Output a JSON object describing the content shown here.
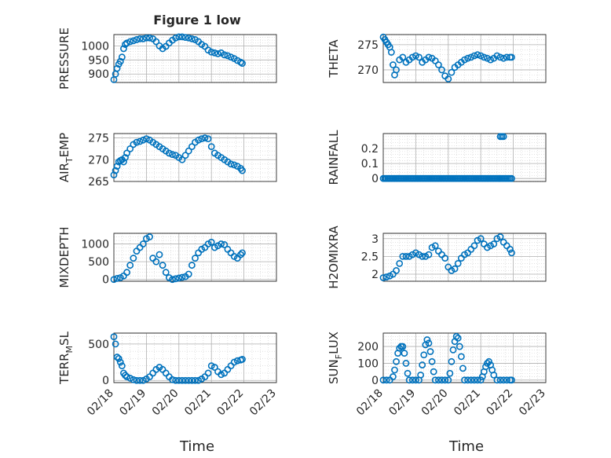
{
  "figure": {
    "title": "Figure 1 low",
    "xlabel": "Time"
  },
  "chart_data": [
    {
      "type": "scatter",
      "name": "PRESSURE",
      "ylabel": "PRESSURE",
      "ylim": [
        870,
        1040
      ],
      "yticks": [
        900,
        950,
        1000
      ],
      "xlim": [
        0,
        5
      ],
      "xticks": [
        0,
        1,
        2,
        3,
        4,
        5
      ],
      "xticklabels": [
        "02/18",
        "02/19",
        "02/20",
        "02/21",
        "02/22",
        "02/23"
      ],
      "show_xticklabels": false,
      "x": [
        0.0,
        0.05,
        0.1,
        0.15,
        0.2,
        0.25,
        0.3,
        0.35,
        0.4,
        0.5,
        0.6,
        0.7,
        0.8,
        0.9,
        1.0,
        1.1,
        1.2,
        1.3,
        1.4,
        1.5,
        1.6,
        1.7,
        1.8,
        1.9,
        2.0,
        2.1,
        2.2,
        2.3,
        2.4,
        2.5,
        2.6,
        2.7,
        2.8,
        2.9,
        3.0,
        3.1,
        3.2,
        3.3,
        3.4,
        3.5,
        3.6,
        3.7,
        3.8,
        3.9,
        3.95
      ],
      "y": [
        880,
        900,
        920,
        935,
        945,
        960,
        990,
        1005,
        1010,
        1015,
        1018,
        1022,
        1025,
        1025,
        1028,
        1028,
        1025,
        1015,
        1000,
        990,
        998,
        1010,
        1020,
        1028,
        1032,
        1032,
        1030,
        1028,
        1025,
        1022,
        1015,
        1005,
        998,
        985,
        978,
        975,
        972,
        975,
        968,
        965,
        960,
        955,
        948,
        942,
        938
      ]
    },
    {
      "type": "scatter",
      "name": "THETA",
      "ylabel": "THETA",
      "ylim": [
        267.5,
        277
      ],
      "yticks": [
        270,
        275
      ],
      "xlim": [
        0,
        5
      ],
      "xticks": [
        0,
        1,
        2,
        3,
        4,
        5
      ],
      "xticklabels": [
        "02/18",
        "02/19",
        "02/20",
        "02/21",
        "02/22",
        "02/23"
      ],
      "show_xticklabels": false,
      "x": [
        0.0,
        0.05,
        0.1,
        0.15,
        0.2,
        0.25,
        0.3,
        0.35,
        0.4,
        0.5,
        0.6,
        0.7,
        0.8,
        0.9,
        1.0,
        1.1,
        1.2,
        1.3,
        1.4,
        1.5,
        1.6,
        1.7,
        1.8,
        1.9,
        2.0,
        2.1,
        2.2,
        2.3,
        2.4,
        2.5,
        2.6,
        2.7,
        2.8,
        2.9,
        3.0,
        3.1,
        3.2,
        3.3,
        3.4,
        3.5,
        3.6,
        3.7,
        3.8,
        3.9,
        3.95
      ],
      "y": [
        276.5,
        276,
        275.5,
        275,
        274.5,
        273.5,
        271,
        269,
        270,
        272,
        272.5,
        271.5,
        272,
        272.5,
        272.8,
        272.5,
        271.5,
        272,
        272.5,
        272.3,
        271.8,
        271,
        270,
        268.8,
        268.2,
        269.5,
        270.5,
        271,
        271.5,
        272,
        272.3,
        272.5,
        272.8,
        273,
        272.8,
        272.5,
        272.3,
        272,
        272.3,
        272.8,
        272.5,
        272.3,
        272.5,
        272.5,
        272.5
      ]
    },
    {
      "type": "scatter",
      "name": "AIR_TEMP",
      "ylabel": "AIR_TEMP",
      "ylim": [
        265,
        276
      ],
      "yticks": [
        265,
        270,
        275
      ],
      "xlim": [
        0,
        5
      ],
      "xticks": [
        0,
        1,
        2,
        3,
        4,
        5
      ],
      "xticklabels": [
        "02/18",
        "02/19",
        "02/20",
        "02/21",
        "02/22",
        "02/23"
      ],
      "show_xticklabels": false,
      "x": [
        0.0,
        0.05,
        0.1,
        0.15,
        0.2,
        0.25,
        0.3,
        0.35,
        0.4,
        0.5,
        0.6,
        0.7,
        0.8,
        0.9,
        1.0,
        1.1,
        1.2,
        1.3,
        1.4,
        1.5,
        1.6,
        1.7,
        1.8,
        1.9,
        2.0,
        2.1,
        2.2,
        2.3,
        2.4,
        2.5,
        2.6,
        2.7,
        2.8,
        2.9,
        3.0,
        3.1,
        3.2,
        3.3,
        3.4,
        3.5,
        3.6,
        3.7,
        3.8,
        3.9,
        3.95
      ],
      "y": [
        266.5,
        267.5,
        268.5,
        269.5,
        269.8,
        270,
        269.5,
        270.5,
        271.5,
        272.5,
        273.5,
        274,
        274.2,
        274.5,
        274.8,
        274.5,
        274,
        273.5,
        273,
        272.5,
        272,
        271.5,
        271.2,
        271,
        270.5,
        270,
        271,
        272,
        273,
        274,
        274.5,
        274.8,
        275,
        274.8,
        273,
        271.5,
        271,
        270.5,
        270,
        269.5,
        269,
        268.8,
        268.5,
        268,
        267.5
      ]
    },
    {
      "type": "scatter",
      "name": "RAINFALL",
      "ylabel": "RAINFALL",
      "ylim": [
        -0.02,
        0.3
      ],
      "yticks": [
        0,
        0.1,
        0.2
      ],
      "xlim": [
        0,
        5
      ],
      "xticks": [
        0,
        1,
        2,
        3,
        4,
        5
      ],
      "xticklabels": [
        "02/18",
        "02/19",
        "02/20",
        "02/21",
        "02/22",
        "02/23"
      ],
      "show_xticklabels": false,
      "x": [
        0.0,
        0.05,
        0.1,
        0.15,
        0.2,
        0.25,
        0.3,
        0.35,
        0.4,
        0.45,
        0.5,
        0.55,
        0.6,
        0.65,
        0.7,
        0.75,
        0.8,
        0.85,
        0.9,
        0.95,
        1.0,
        1.05,
        1.1,
        1.15,
        1.2,
        1.25,
        1.3,
        1.35,
        1.4,
        1.45,
        1.5,
        1.55,
        1.6,
        1.65,
        1.7,
        1.75,
        1.8,
        1.85,
        1.9,
        1.95,
        2.0,
        2.05,
        2.1,
        2.15,
        2.2,
        2.25,
        2.3,
        2.35,
        2.4,
        2.45,
        2.5,
        2.55,
        2.6,
        2.65,
        2.7,
        2.75,
        2.8,
        2.85,
        2.9,
        2.95,
        3.0,
        3.05,
        3.1,
        3.15,
        3.2,
        3.25,
        3.3,
        3.35,
        3.4,
        3.45,
        3.5,
        3.55,
        3.6,
        3.65,
        3.7,
        3.75,
        3.8,
        3.85,
        3.9,
        3.95,
        3.6,
        3.65,
        3.7
      ],
      "y": [
        0,
        0,
        0,
        0,
        0,
        0,
        0,
        0,
        0,
        0,
        0,
        0,
        0,
        0,
        0,
        0,
        0,
        0,
        0,
        0,
        0,
        0,
        0,
        0,
        0,
        0,
        0,
        0,
        0,
        0,
        0,
        0,
        0,
        0,
        0,
        0,
        0,
        0,
        0,
        0,
        0,
        0,
        0,
        0,
        0,
        0,
        0,
        0,
        0,
        0,
        0,
        0,
        0,
        0,
        0,
        0,
        0,
        0,
        0,
        0,
        0,
        0,
        0,
        0,
        0,
        0,
        0,
        0,
        0,
        0,
        0,
        0,
        0,
        0,
        0,
        0,
        0,
        0,
        0,
        0,
        0.28,
        0.28,
        0.28
      ]
    },
    {
      "type": "scatter",
      "name": "MIXDEPTH",
      "ylabel": "MIXDEPTH",
      "ylim": [
        -50,
        1300
      ],
      "yticks": [
        0,
        500,
        1000
      ],
      "xlim": [
        0,
        5
      ],
      "xticks": [
        0,
        1,
        2,
        3,
        4,
        5
      ],
      "xticklabels": [
        "02/18",
        "02/19",
        "02/20",
        "02/21",
        "02/22",
        "02/23"
      ],
      "show_xticklabels": false,
      "x": [
        0.0,
        0.1,
        0.2,
        0.3,
        0.4,
        0.5,
        0.6,
        0.7,
        0.8,
        0.9,
        1.0,
        1.1,
        1.2,
        1.3,
        1.4,
        1.5,
        1.6,
        1.7,
        1.8,
        1.9,
        2.0,
        2.1,
        2.2,
        2.3,
        2.4,
        2.5,
        2.6,
        2.7,
        2.8,
        2.9,
        3.0,
        3.1,
        3.2,
        3.3,
        3.4,
        3.5,
        3.6,
        3.7,
        3.8,
        3.9,
        3.95
      ],
      "y": [
        0,
        30,
        50,
        100,
        200,
        400,
        600,
        800,
        900,
        1000,
        1150,
        1200,
        600,
        500,
        700,
        400,
        200,
        50,
        0,
        20,
        40,
        60,
        80,
        150,
        400,
        600,
        750,
        850,
        900,
        1000,
        1050,
        900,
        950,
        1000,
        980,
        850,
        750,
        650,
        600,
        700,
        750
      ]
    },
    {
      "type": "scatter",
      "name": "H2OMIXRA",
      "ylabel": "H2OMIXRA",
      "ylim": [
        1.8,
        3.15
      ],
      "yticks": [
        2,
        2.5,
        3
      ],
      "xlim": [
        0,
        5
      ],
      "xticks": [
        0,
        1,
        2,
        3,
        4,
        5
      ],
      "xticklabels": [
        "02/18",
        "02/19",
        "02/20",
        "02/21",
        "02/22",
        "02/23"
      ],
      "show_xticklabels": false,
      "x": [
        0.0,
        0.1,
        0.2,
        0.3,
        0.4,
        0.5,
        0.6,
        0.7,
        0.8,
        0.9,
        1.0,
        1.1,
        1.2,
        1.3,
        1.4,
        1.5,
        1.6,
        1.7,
        1.8,
        1.9,
        2.0,
        2.1,
        2.2,
        2.3,
        2.4,
        2.5,
        2.6,
        2.7,
        2.8,
        2.9,
        3.0,
        3.1,
        3.2,
        3.3,
        3.4,
        3.5,
        3.6,
        3.7,
        3.8,
        3.9,
        3.95
      ],
      "y": [
        1.9,
        1.92,
        1.95,
        2.0,
        2.1,
        2.3,
        2.5,
        2.5,
        2.5,
        2.55,
        2.6,
        2.55,
        2.5,
        2.5,
        2.55,
        2.75,
        2.8,
        2.65,
        2.55,
        2.45,
        2.2,
        2.1,
        2.15,
        2.3,
        2.45,
        2.55,
        2.6,
        2.7,
        2.8,
        2.95,
        3.0,
        2.85,
        2.75,
        2.8,
        2.85,
        3.0,
        3.05,
        2.9,
        2.8,
        2.7,
        2.6
      ]
    },
    {
      "type": "scatter",
      "name": "TERR_MSL",
      "ylabel": "TERR_MSL",
      "ylim": [
        -30,
        650
      ],
      "yticks": [
        0,
        500
      ],
      "xlim": [
        0,
        5
      ],
      "xticks": [
        0,
        1,
        2,
        3,
        4,
        5
      ],
      "xticklabels": [
        "02/18",
        "02/19",
        "02/20",
        "02/21",
        "02/22",
        "02/23"
      ],
      "show_xticklabels": true,
      "x": [
        0.0,
        0.05,
        0.1,
        0.15,
        0.2,
        0.25,
        0.3,
        0.35,
        0.4,
        0.5,
        0.6,
        0.7,
        0.8,
        0.9,
        1.0,
        1.1,
        1.2,
        1.3,
        1.4,
        1.5,
        1.6,
        1.7,
        1.8,
        1.9,
        2.0,
        2.1,
        2.2,
        2.3,
        2.4,
        2.5,
        2.6,
        2.7,
        2.8,
        2.9,
        3.0,
        3.1,
        3.2,
        3.3,
        3.4,
        3.5,
        3.6,
        3.7,
        3.8,
        3.9,
        3.95
      ],
      "y": [
        600,
        500,
        320,
        300,
        250,
        200,
        100,
        70,
        50,
        30,
        10,
        0,
        0,
        0,
        20,
        50,
        100,
        150,
        180,
        150,
        100,
        50,
        10,
        0,
        0,
        0,
        0,
        0,
        0,
        0,
        0,
        20,
        50,
        100,
        200,
        180,
        120,
        80,
        100,
        150,
        200,
        250,
        270,
        280,
        290
      ]
    },
    {
      "type": "scatter",
      "name": "SUN_FLUX",
      "ylabel": "SUN_FLUX",
      "ylim": [
        -15,
        280
      ],
      "yticks": [
        0,
        100,
        200
      ],
      "xlim": [
        0,
        5
      ],
      "xticks": [
        0,
        1,
        2,
        3,
        4,
        5
      ],
      "xticklabels": [
        "02/18",
        "02/19",
        "02/20",
        "02/21",
        "02/22",
        "02/23"
      ],
      "show_xticklabels": true,
      "x": [
        0.0,
        0.1,
        0.2,
        0.3,
        0.35,
        0.4,
        0.45,
        0.5,
        0.55,
        0.6,
        0.65,
        0.7,
        0.75,
        0.8,
        0.9,
        1.0,
        1.1,
        1.15,
        1.2,
        1.25,
        1.3,
        1.35,
        1.4,
        1.45,
        1.5,
        1.55,
        1.6,
        1.7,
        1.8,
        1.9,
        2.0,
        2.05,
        2.1,
        2.15,
        2.2,
        2.25,
        2.3,
        2.35,
        2.4,
        2.45,
        2.5,
        2.6,
        2.7,
        2.8,
        2.9,
        3.0,
        3.05,
        3.1,
        3.15,
        3.2,
        3.25,
        3.3,
        3.35,
        3.4,
        3.5,
        3.6,
        3.7,
        3.8,
        3.9,
        3.95
      ],
      "y": [
        0,
        0,
        0,
        20,
        60,
        110,
        160,
        190,
        200,
        200,
        160,
        100,
        40,
        0,
        0,
        0,
        0,
        30,
        90,
        150,
        210,
        240,
        220,
        170,
        110,
        50,
        0,
        0,
        0,
        0,
        0,
        40,
        110,
        180,
        230,
        260,
        250,
        200,
        140,
        70,
        0,
        0,
        0,
        0,
        0,
        0,
        20,
        50,
        80,
        100,
        110,
        90,
        60,
        30,
        0,
        0,
        0,
        0,
        0,
        0
      ]
    }
  ]
}
